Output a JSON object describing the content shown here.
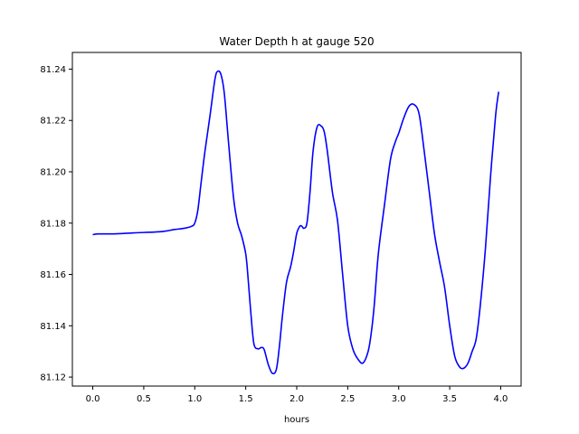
{
  "chart_data": {
    "type": "line",
    "title": "Water Depth h at gauge 520",
    "xlabel": "hours",
    "ylabel": "",
    "xlim": [
      -0.2,
      4.2
    ],
    "ylim": [
      81.1165,
      81.2465
    ],
    "xticks": [
      0.0,
      0.5,
      1.0,
      1.5,
      2.0,
      2.5,
      3.0,
      3.5,
      4.0
    ],
    "xtick_labels": [
      "0.0",
      "0.5",
      "1.0",
      "1.5",
      "2.0",
      "2.5",
      "3.0",
      "3.5",
      "4.0"
    ],
    "yticks": [
      81.12,
      81.14,
      81.16,
      81.18,
      81.2,
      81.22,
      81.24
    ],
    "ytick_labels": [
      "81.12",
      "81.14",
      "81.16",
      "81.18",
      "81.20",
      "81.22",
      "81.24"
    ],
    "grid": false,
    "series": [
      {
        "color": "#0000ff",
        "x": [
          0.0,
          0.05,
          0.2,
          0.4,
          0.6,
          0.7,
          0.8,
          0.9,
          0.97,
          1.0,
          1.03,
          1.06,
          1.1,
          1.15,
          1.2,
          1.23,
          1.26,
          1.29,
          1.33,
          1.38,
          1.42,
          1.46,
          1.5,
          1.52,
          1.55,
          1.58,
          1.62,
          1.65,
          1.68,
          1.72,
          1.76,
          1.8,
          1.83,
          1.86,
          1.9,
          1.94,
          1.97,
          2.0,
          2.03,
          2.05,
          2.07,
          2.1,
          2.13,
          2.16,
          2.2,
          2.24,
          2.27,
          2.3,
          2.35,
          2.4,
          2.45,
          2.5,
          2.55,
          2.6,
          2.65,
          2.7,
          2.73,
          2.76,
          2.8,
          2.86,
          2.92,
          2.97,
          3.0,
          3.05,
          3.1,
          3.15,
          3.2,
          3.25,
          3.3,
          3.35,
          3.4,
          3.45,
          3.5,
          3.55,
          3.6,
          3.64,
          3.68,
          3.72,
          3.76,
          3.8,
          3.85,
          3.9,
          3.95,
          3.98
        ],
        "values": [
          81.1755,
          81.1758,
          81.1758,
          81.1762,
          81.1765,
          81.1768,
          81.1775,
          81.178,
          81.1788,
          81.18,
          81.185,
          81.195,
          81.208,
          81.222,
          81.2365,
          81.2392,
          81.2375,
          81.2305,
          81.212,
          81.19,
          81.18,
          81.175,
          81.168,
          81.16,
          81.145,
          81.133,
          81.131,
          81.1315,
          81.1308,
          81.125,
          81.1215,
          81.123,
          81.132,
          81.144,
          81.157,
          81.163,
          81.169,
          81.176,
          81.1788,
          81.1788,
          81.178,
          81.18,
          81.192,
          81.208,
          81.2175,
          81.2178,
          81.2155,
          81.208,
          81.192,
          81.181,
          81.16,
          81.14,
          81.131,
          81.127,
          81.1255,
          81.13,
          81.137,
          81.148,
          81.168,
          81.187,
          81.205,
          81.212,
          81.215,
          81.221,
          81.2255,
          81.2262,
          81.2225,
          81.208,
          81.192,
          81.176,
          81.165,
          81.155,
          81.14,
          81.128,
          81.1238,
          81.1235,
          81.1255,
          81.13,
          81.135,
          81.148,
          81.17,
          81.198,
          81.222,
          81.2312
        ]
      }
    ]
  }
}
